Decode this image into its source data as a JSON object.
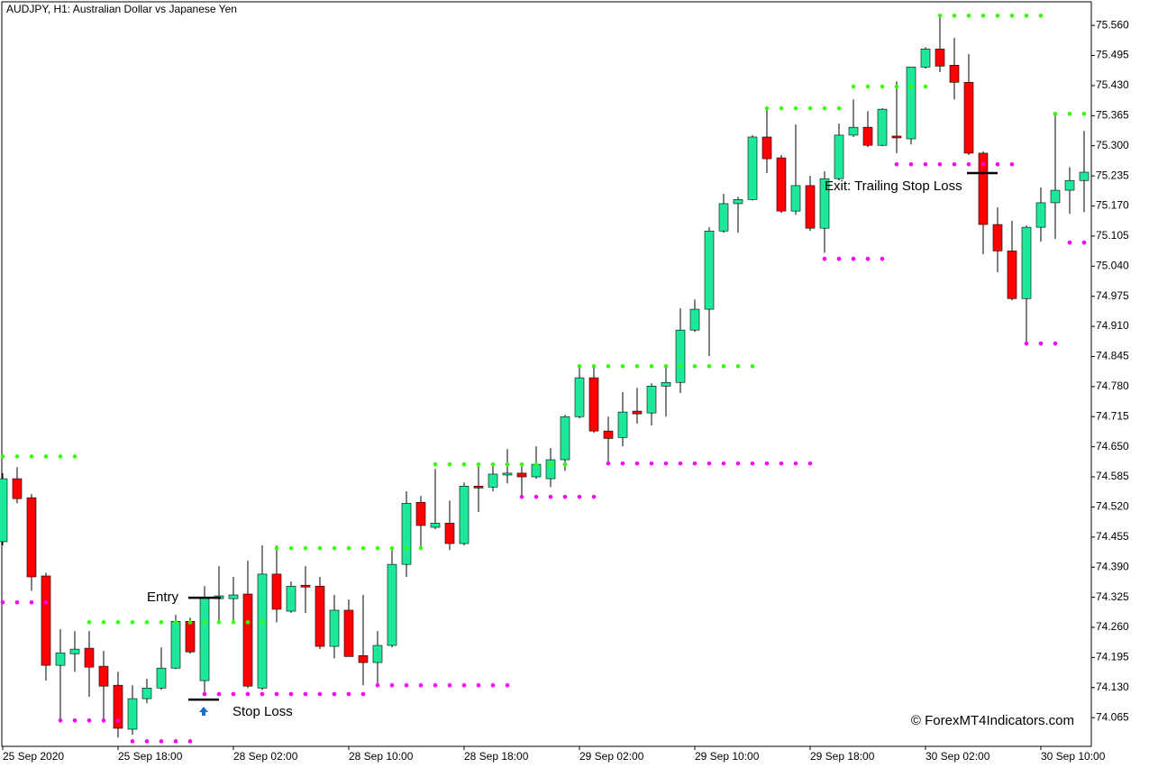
{
  "chart_data": {
    "type": "candlestick",
    "title": "AUDJPY, H1:  Australian Dollar vs Japanese Yen",
    "watermark": "© ForexMT4Indicators.com",
    "categories": [
      "25 Sep 2020",
      null,
      null,
      null,
      null,
      null,
      null,
      null,
      "25 Sep 18:00",
      null,
      null,
      null,
      null,
      null,
      null,
      null,
      "28 Sep 02:00",
      null,
      null,
      null,
      null,
      null,
      null,
      null,
      "28 Sep 10:00",
      null,
      null,
      null,
      null,
      null,
      null,
      null,
      "28 Sep 18:00",
      null,
      null,
      null,
      null,
      null,
      null,
      null,
      "29 Sep 02:00",
      null,
      null,
      null,
      null,
      null,
      null,
      null,
      "29 Sep 10:00",
      null,
      null,
      null,
      null,
      null,
      null,
      null,
      "29 Sep 18:00",
      null,
      null,
      null,
      null,
      null,
      null,
      null,
      "30 Sep 02:00",
      null,
      null,
      null,
      null,
      null,
      null,
      null,
      "30 Sep 10:00",
      null,
      null,
      null
    ],
    "open": [
      74.445,
      74.581,
      74.54,
      74.371,
      74.178,
      74.203,
      74.215,
      74.176,
      74.135,
      74.04,
      74.106,
      74.129,
      74.172,
      74.273,
      74.145,
      74.322,
      74.322,
      74.332,
      74.129,
      74.375,
      74.295,
      74.351,
      74.349,
      74.219,
      74.297,
      74.199,
      74.184,
      74.221,
      74.396,
      74.53,
      74.476,
      74.485,
      74.441,
      74.565,
      74.563,
      74.589,
      74.593,
      74.585,
      74.581,
      74.622,
      74.715,
      74.799,
      74.684,
      74.67,
      74.727,
      74.723,
      74.781,
      74.789,
      74.902,
      74.947,
      75.116,
      75.175,
      75.184,
      75.319,
      75.274,
      75.159,
      75.214,
      75.122,
      75.229,
      75.323,
      75.34,
      75.301,
      75.321,
      75.315,
      75.47,
      75.509,
      75.474,
      75.437,
      75.284,
      75.13,
      75.073,
      74.97,
      75.124,
      75.177,
      75.204,
      75.225
    ],
    "high": [
      74.593,
      74.606,
      74.548,
      74.378,
      74.256,
      74.252,
      74.252,
      74.209,
      74.164,
      74.135,
      74.149,
      74.217,
      74.287,
      74.281,
      74.349,
      74.392,
      74.369,
      74.404,
      74.437,
      74.437,
      74.359,
      74.392,
      74.369,
      74.33,
      74.32,
      74.33,
      74.252,
      74.427,
      74.554,
      74.544,
      74.602,
      74.534,
      74.573,
      74.612,
      74.612,
      74.645,
      74.612,
      74.651,
      74.647,
      74.719,
      74.826,
      74.826,
      74.715,
      74.768,
      74.777,
      74.787,
      74.826,
      74.949,
      74.968,
      75.124,
      75.196,
      75.19,
      75.323,
      75.381,
      75.28,
      75.346,
      75.235,
      75.245,
      75.348,
      75.4,
      75.375,
      75.381,
      75.439,
      75.47,
      75.513,
      75.579,
      75.533,
      75.498,
      75.288,
      75.167,
      75.138,
      75.128,
      75.21,
      75.371,
      75.254,
      75.332
    ],
    "low": [
      74.437,
      74.528,
      74.339,
      74.145,
      74.057,
      74.164,
      74.11,
      74.057,
      74.022,
      74.028,
      74.096,
      74.125,
      74.17,
      74.203,
      74.119,
      74.271,
      74.271,
      74.129,
      74.125,
      74.271,
      74.291,
      74.291,
      74.213,
      74.193,
      74.197,
      74.135,
      74.131,
      74.217,
      74.369,
      74.427,
      74.472,
      74.427,
      74.437,
      74.509,
      74.554,
      74.571,
      74.544,
      74.581,
      74.563,
      74.598,
      74.711,
      74.68,
      74.618,
      74.651,
      74.7,
      74.696,
      74.715,
      74.766,
      74.898,
      74.846,
      75.112,
      75.112,
      75.182,
      75.241,
      75.155,
      75.151,
      75.116,
      75.069,
      75.225,
      75.319,
      75.297,
      75.299,
      75.284,
      75.303,
      75.467,
      75.459,
      75.4,
      75.28,
      75.066,
      75.027,
      74.966,
      74.871,
      75.093,
      75.099,
      75.153,
      75.157
    ],
    "close": [
      74.581,
      74.538,
      74.369,
      74.178,
      74.205,
      74.213,
      74.174,
      74.133,
      74.042,
      74.106,
      74.129,
      74.172,
      74.273,
      74.207,
      74.324,
      74.328,
      74.33,
      74.133,
      74.375,
      74.299,
      74.349,
      74.347,
      74.219,
      74.297,
      74.197,
      74.184,
      74.221,
      74.396,
      74.528,
      74.48,
      74.485,
      74.441,
      74.565,
      74.561,
      74.591,
      74.593,
      74.585,
      74.612,
      74.622,
      74.715,
      74.799,
      74.684,
      74.668,
      74.725,
      74.721,
      74.781,
      74.789,
      74.902,
      74.947,
      75.116,
      75.175,
      75.184,
      75.319,
      75.272,
      75.159,
      75.214,
      75.122,
      75.229,
      75.323,
      75.34,
      75.301,
      75.379,
      75.317,
      75.47,
      75.509,
      75.472,
      75.437,
      75.284,
      75.13,
      75.073,
      74.97,
      75.124,
      75.177,
      75.204,
      75.225,
      75.243
    ],
    "up_color": "#1ee899",
    "down_color": "#ff0000",
    "wick_color": "#000000",
    "dots": [
      {
        "color": "#33ff00",
        "values": [
          74.629,
          74.629,
          74.629,
          74.629,
          74.629,
          74.629,
          74.271,
          74.271,
          74.271,
          74.271,
          74.271,
          74.271,
          74.271,
          74.271,
          74.271,
          74.271,
          74.271,
          74.271,
          74.271,
          74.431,
          74.431,
          74.431,
          74.431,
          74.431,
          74.431,
          74.431,
          74.431,
          74.431,
          74.431,
          74.431,
          74.612,
          74.612,
          74.612,
          74.612,
          74.612,
          74.612,
          74.612,
          74.612,
          74.612,
          74.612,
          74.824,
          74.824,
          74.824,
          74.824,
          74.824,
          74.824,
          74.824,
          74.824,
          74.824,
          74.824,
          74.824,
          74.824,
          74.824,
          75.381,
          75.381,
          75.381,
          75.381,
          75.381,
          75.381,
          75.428,
          75.428,
          75.428,
          75.428,
          75.428,
          75.428,
          75.581,
          75.581,
          75.581,
          75.581,
          75.581,
          75.581,
          75.581,
          75.581,
          75.369,
          75.369,
          75.369
        ]
      },
      {
        "color": "#ff00ff",
        "values": [
          74.314,
          74.314,
          74.314,
          74.314,
          74.059,
          74.059,
          74.059,
          74.059,
          74.059,
          74.014,
          74.014,
          74.014,
          74.014,
          74.014,
          74.116,
          74.116,
          74.116,
          74.116,
          74.116,
          74.116,
          74.116,
          74.116,
          74.116,
          74.116,
          74.116,
          74.116,
          74.135,
          74.135,
          74.135,
          74.135,
          74.135,
          74.135,
          74.135,
          74.135,
          74.135,
          74.135,
          74.542,
          74.542,
          74.542,
          74.542,
          74.542,
          74.542,
          74.614,
          74.614,
          74.614,
          74.614,
          74.614,
          74.614,
          74.614,
          74.614,
          74.614,
          74.614,
          74.614,
          74.614,
          74.614,
          74.614,
          74.614,
          75.056,
          75.056,
          75.056,
          75.056,
          75.056,
          75.26,
          75.26,
          75.26,
          75.26,
          75.26,
          75.26,
          75.26,
          75.26,
          75.26,
          74.873,
          74.873,
          74.873,
          75.091,
          75.091
        ]
      }
    ],
    "annotations": [
      {
        "text": "Entry",
        "value": 74.324
      },
      {
        "text": "Stop Loss",
        "value": 74.104
      },
      {
        "text": "Exit: Trailing Stop Loss",
        "value": 75.241
      }
    ],
    "ylim": [
      74.003,
      75.609
    ],
    "yticks": [
      {
        "value": 75.56,
        "label": "75.560"
      },
      75.495,
      {
        "value": 75.43,
        "label": "75.430"
      },
      75.365,
      {
        "value": 75.3,
        "label": "75.300"
      },
      75.235,
      {
        "value": 75.17,
        "label": "75.170"
      },
      75.105,
      {
        "value": 75.04,
        "label": "75.040"
      },
      74.975,
      {
        "value": 74.91,
        "label": "74.910"
      },
      74.845,
      {
        "value": 74.78,
        "label": "74.780"
      },
      74.715,
      {
        "value": 74.65,
        "label": "74.650"
      },
      74.585,
      {
        "value": 74.52,
        "label": "74.520"
      },
      74.455,
      {
        "value": 74.39,
        "label": "74.390"
      },
      74.325,
      {
        "value": 74.26,
        "label": "74.260"
      },
      74.195,
      {
        "value": 74.13,
        "label": "74.130"
      },
      74.065
    ]
  }
}
